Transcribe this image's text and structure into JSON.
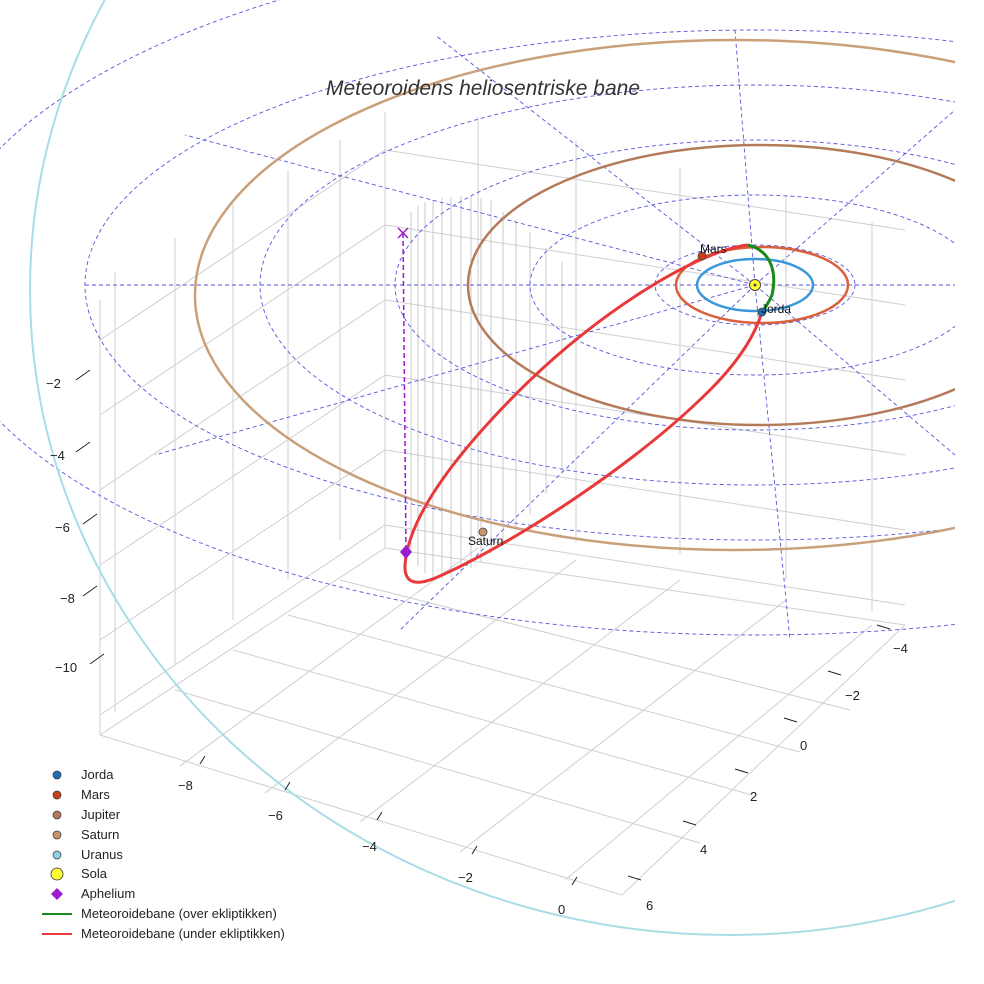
{
  "chart_data": {
    "type": "scatter",
    "title": "Meteoroidens heliosentriske bane",
    "axes": {
      "x": {
        "ticks": [
          "−8",
          "−6",
          "−4",
          "−2",
          "0"
        ]
      },
      "y": {
        "ticks": [
          "−4",
          "−2",
          "0",
          "2",
          "4",
          "6"
        ]
      },
      "z": {
        "ticks": [
          "−2",
          "−4",
          "−6",
          "−8",
          "−10"
        ]
      }
    },
    "orbits": [
      {
        "name": "Jorda",
        "color": "#3a98d8",
        "radius_au": 1.0
      },
      {
        "name": "Mars",
        "color": "#d9603b",
        "radius_au": 1.52
      },
      {
        "name": "Jupiter",
        "color": "#b57a5a",
        "radius_au": 5.2
      },
      {
        "name": "Saturn",
        "color": "#c9a07a",
        "radius_au": 9.5
      },
      {
        "name": "Uranus",
        "color": "#a9dde6",
        "radius_au": 19.2
      }
    ],
    "planet_labels": [
      {
        "name": "Mars",
        "color": "#d03010"
      },
      {
        "name": "Jorda",
        "color": "#1f6fb5"
      },
      {
        "name": "Saturn",
        "color": "#b87a5a"
      }
    ],
    "meteoroid_orbit": {
      "above_color": "#1a8a1a",
      "below_color": "#e8383a"
    },
    "aphelium_color": "#9b1bd1",
    "sun_color": "#ffff33",
    "grid_color": "#5555dd",
    "legend": [
      {
        "label": "Jorda",
        "marker": "dot",
        "color": "#1f6fb5"
      },
      {
        "label": "Mars",
        "marker": "dot",
        "color": "#c8401c"
      },
      {
        "label": "Jupiter",
        "marker": "dot",
        "color": "#b57a5a"
      },
      {
        "label": "Saturn",
        "marker": "dot",
        "color": "#c9946a"
      },
      {
        "label": "Uranus",
        "marker": "dot",
        "color": "#8fd0e0"
      },
      {
        "label": "Sola",
        "marker": "sun",
        "color": "#ffff33"
      },
      {
        "label": "Aphelium",
        "marker": "diamond",
        "color": "#9b1bd1"
      },
      {
        "label": "Meteoroidebane (over ekliptikken)",
        "marker": "line",
        "color": "#1a8a1a"
      },
      {
        "label": "Meteoroidebane (under ekliptikken)",
        "marker": "line",
        "color": "#e8383a"
      }
    ]
  }
}
